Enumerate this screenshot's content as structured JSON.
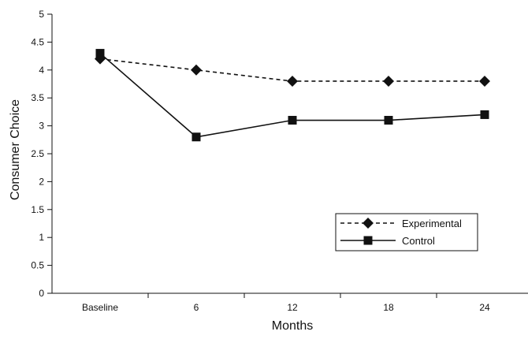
{
  "chart_data": {
    "type": "line",
    "xlabel": "Months",
    "ylabel": "Consumer Choice",
    "categories": [
      "Baseline",
      "6",
      "12",
      "18",
      "24"
    ],
    "ylim": [
      0,
      5
    ],
    "yticks": [
      "0",
      "0.5",
      "1",
      "1.5",
      "2",
      "2.5",
      "3",
      "3.5",
      "4",
      "4.5",
      "5"
    ],
    "grid": false,
    "legend_position": "right",
    "series": [
      {
        "name": "Experimental",
        "values": [
          4.2,
          4.0,
          3.8,
          3.8,
          3.8
        ],
        "marker": "diamond",
        "line_style": "dashed",
        "color": "#111111"
      },
      {
        "name": "Control",
        "values": [
          4.3,
          2.8,
          3.1,
          3.1,
          3.2
        ],
        "marker": "square",
        "line_style": "solid",
        "color": "#111111"
      }
    ]
  }
}
